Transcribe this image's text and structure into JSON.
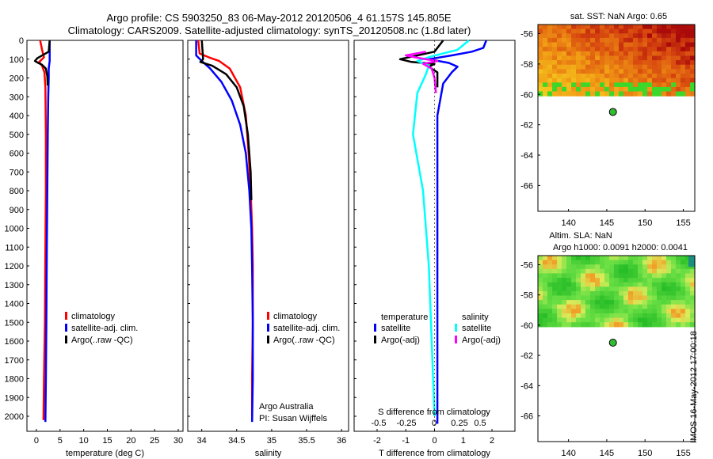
{
  "title": {
    "line1": "Argo profile: CS 5903250_83 06-May-2012 20120506_4 61.157S 145.805E",
    "line2": "Climatology: CARS2009. Satellite-adjusted climatology: synTS_20120508.nc (1.8d later)"
  },
  "side_stamp": "IMOS 16-May-2012 17:00:18",
  "colors": {
    "climatology": "#ff0000",
    "satellite": "#0000ff",
    "argo": "#000000",
    "sat_s": "#00ffff",
    "argo_s": "#ff00ff"
  },
  "chart_data": [
    {
      "id": "temperature",
      "type": "line",
      "xlabel": "temperature (deg C)",
      "xlim": [
        -2,
        31
      ],
      "ylim": [
        0,
        2080
      ],
      "ytick_labels": [
        "0",
        "100",
        "200",
        "300",
        "400",
        "500",
        "600",
        "700",
        "800",
        "900",
        "1000",
        "1100",
        "1200",
        "1300",
        "1400",
        "1500",
        "1600",
        "1700",
        "1800",
        "1900",
        "2000"
      ],
      "xtick_labels": [
        "0",
        "5",
        "10",
        "15",
        "20",
        "25",
        "30"
      ],
      "legend": [
        "climatology",
        "satellite-adj. clim.",
        "Argo(..raw -QC)"
      ],
      "series": [
        {
          "name": "climatology",
          "color": "climatology",
          "x": [
            0.8,
            1.2,
            1.6,
            0.6,
            1.2,
            1.7,
            1.9,
            2.0,
            2.0,
            1.9,
            1.8,
            1.6,
            1.5
          ],
          "y": [
            0,
            50,
            90,
            115,
            135,
            170,
            250,
            500,
            800,
            1100,
            1500,
            1800,
            2020
          ]
        },
        {
          "name": "satellite-adj. clim.",
          "color": "satellite",
          "x": [
            2.8,
            2.8,
            2.6,
            2.6,
            2.5,
            2.4,
            2.3,
            2.2,
            2.1,
            2.0,
            1.9
          ],
          "y": [
            0,
            110,
            150,
            200,
            300,
            500,
            800,
            1100,
            1500,
            1800,
            2030
          ]
        },
        {
          "name": "Argo(..raw -QC)",
          "color": "argo",
          "x": [
            2.8,
            2.6,
            0.2,
            -0.3,
            0.4,
            1.2,
            2.0,
            2.3,
            2.4
          ],
          "y": [
            0,
            60,
            95,
            110,
            120,
            130,
            150,
            190,
            240
          ]
        }
      ]
    },
    {
      "id": "salinity",
      "type": "line",
      "xlabel": "salinity",
      "xlim": [
        33.8,
        36.1
      ],
      "ylim": [
        0,
        2080
      ],
      "xtick_labels": [
        "34",
        "34.5",
        "35",
        "35.5",
        "36"
      ],
      "legend": [
        "climatology",
        "satellite-adj. clim.",
        "Argo(..raw -QC)"
      ],
      "annotation": [
        "Argo Australia",
        "PI: Susan Wijffels"
      ],
      "series": [
        {
          "name": "climatology",
          "color": "climatology",
          "x": [
            33.95,
            33.97,
            34.1,
            34.25,
            34.4,
            34.55,
            34.63,
            34.67,
            34.7,
            34.72,
            34.73,
            34.73,
            34.72,
            34.72
          ],
          "y": [
            0,
            70,
            90,
            110,
            150,
            250,
            400,
            600,
            800,
            1000,
            1200,
            1500,
            1800,
            2000
          ]
        },
        {
          "name": "satellite-adj. clim.",
          "color": "satellite",
          "x": [
            33.92,
            33.92,
            34.0,
            34.12,
            34.28,
            34.43,
            34.55,
            34.63,
            34.68,
            34.71,
            34.72,
            34.73,
            34.73,
            34.72
          ],
          "y": [
            0,
            80,
            110,
            150,
            220,
            320,
            450,
            600,
            800,
            1000,
            1200,
            1500,
            1800,
            2030
          ]
        },
        {
          "name": "Argo(..raw -QC)",
          "color": "argo",
          "x": [
            34.0,
            34.02,
            33.98,
            34.15,
            34.35,
            34.5,
            34.6,
            34.66,
            34.7,
            34.71
          ],
          "y": [
            0,
            100,
            115,
            135,
            180,
            250,
            350,
            500,
            700,
            850
          ]
        }
      ]
    },
    {
      "id": "difference",
      "type": "line",
      "xlabel": "T difference from climatology",
      "title_bottom": "S difference from climatology",
      "xlim": [
        -2.8,
        2.8
      ],
      "ylim": [
        0,
        2080
      ],
      "xtick_labels": [
        "-2",
        "-1",
        "0",
        "1",
        "2"
      ],
      "top_axis_labels": [
        "-0.5",
        "-0.25",
        "0",
        "0.25",
        "0.5"
      ],
      "legend_t": {
        "title": "temperature",
        "items": [
          "satellite",
          "Argo(-adj)"
        ]
      },
      "legend_s": {
        "title": "salinity",
        "items": [
          "satellite",
          "Argo(-adj)"
        ]
      },
      "series": [
        {
          "name": "T satellite",
          "color": "satellite",
          "x": [
            1.8,
            1.7,
            1.3,
            0.6,
            -0.2,
            0.5,
            0.8,
            0.6,
            0.3,
            0.1,
            0.1,
            0.1,
            0.1,
            0.1
          ],
          "y": [
            0,
            40,
            60,
            80,
            100,
            120,
            140,
            170,
            230,
            400,
            800,
            1200,
            1600,
            2040
          ]
        },
        {
          "name": "T Argo(-adj)",
          "color": "argo",
          "x": [
            0.3,
            0.0,
            -1.2,
            -0.8,
            0.0,
            -0.2,
            0.1,
            0.1
          ],
          "y": [
            0,
            60,
            100,
            115,
            125,
            140,
            170,
            250
          ]
        },
        {
          "name": "S satellite",
          "color": "sat_s",
          "x": [
            1.2,
            0.8,
            -0.1,
            -0.6,
            -0.2,
            -0.3,
            -0.6,
            -0.75,
            -0.4,
            -0.2,
            -0.1,
            0.0
          ],
          "y": [
            0,
            50,
            85,
            110,
            135,
            180,
            280,
            500,
            800,
            1200,
            1600,
            2000
          ]
        },
        {
          "name": "S Argo(-adj)",
          "color": "argo_s",
          "x": [
            -0.3,
            -1.0,
            -0.5,
            0.1,
            -0.4,
            -0.1,
            0.0,
            0.05
          ],
          "y": [
            60,
            80,
            95,
            110,
            125,
            150,
            200,
            280
          ]
        }
      ]
    },
    {
      "id": "sst-map",
      "type": "heatmap",
      "title": "sat. SST: NaN Argo: 0.65",
      "xlim": [
        136,
        156.5
      ],
      "ylim": [
        -67.7,
        -55.4
      ],
      "xtick_labels": [
        "140",
        "145",
        "150",
        "155"
      ],
      "ytick_labels": [
        "-56",
        "-58",
        "-60",
        "-62",
        "-64",
        "-66"
      ],
      "data_ylim": [
        -60.1,
        -55.4
      ],
      "argo_position": {
        "lon": 145.805,
        "lat": -61.157
      }
    },
    {
      "id": "sla-map",
      "type": "heatmap",
      "title": "Altim. SLA: NaN",
      "subtitle": "Argo h1000: 0.0091 h2000: 0.0041",
      "xlim": [
        136,
        156.5
      ],
      "ylim": [
        -67.7,
        -55.4
      ],
      "xtick_labels": [
        "140",
        "145",
        "150",
        "155"
      ],
      "ytick_labels": [
        "-56",
        "-58",
        "-60",
        "-62",
        "-64",
        "-66"
      ],
      "data_ylim": [
        -60.1,
        -55.4
      ],
      "argo_position": {
        "lon": 145.805,
        "lat": -61.157
      }
    }
  ]
}
